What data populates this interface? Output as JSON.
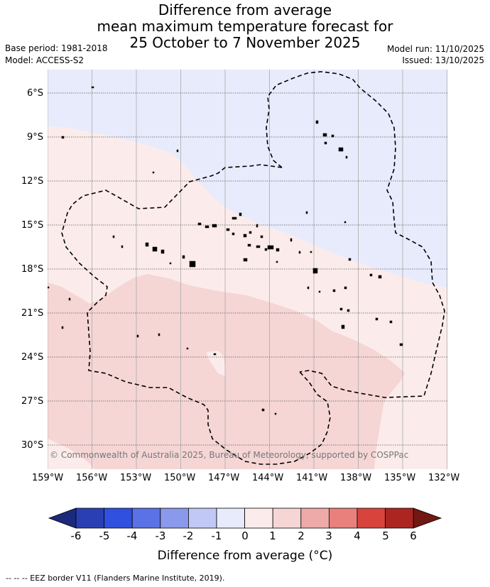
{
  "title": {
    "line1": "Difference from average",
    "line2": "mean maximum temperature forecast for",
    "line3": "25 October to 7 November 2025"
  },
  "meta": {
    "base_period": "Base period: 1981-2018",
    "model": "Model: ACCESS-S2",
    "model_run": "Model run: 11/10/2025",
    "issued": "Issued: 13/10/2025"
  },
  "map": {
    "lon_labels": [
      "159°W",
      "156°W",
      "153°W",
      "150°W",
      "147°W",
      "144°W",
      "141°W",
      "138°W",
      "135°W",
      "132°W"
    ],
    "lat_labels": [
      "6°S",
      "9°S",
      "12°S",
      "15°S",
      "18°S",
      "21°S",
      "24°S",
      "27°S",
      "30°S"
    ],
    "copyright": "© Commonwealth of Australia 2025, Bureau of Meteorology, supported by COSPPac",
    "colors": {
      "cat_minus1_0": "#e8ebfb",
      "cat_0_1": "#fbeceb",
      "cat_1_2": "#f5d6d5",
      "land": "#000000",
      "eez": "#000000"
    }
  },
  "colorbar": {
    "ticks": [
      "-6",
      "-5",
      "-4",
      "-3",
      "-2",
      "-1",
      "0",
      "1",
      "2",
      "3",
      "4",
      "5",
      "6"
    ],
    "colors": [
      "#1c2a7c",
      "#2a3fb4",
      "#3050e0",
      "#5a72e6",
      "#8a99ec",
      "#c2c8f5",
      "#e8ebfb",
      "#fbeceb",
      "#f5d6d5",
      "#eeaaa8",
      "#e8807c",
      "#d8443c",
      "#ad2520",
      "#721813"
    ],
    "label": "Difference from average (°C)"
  },
  "footer": "-- -- -- EEZ border V11 (Flanders Marine Institute, 2019)."
}
